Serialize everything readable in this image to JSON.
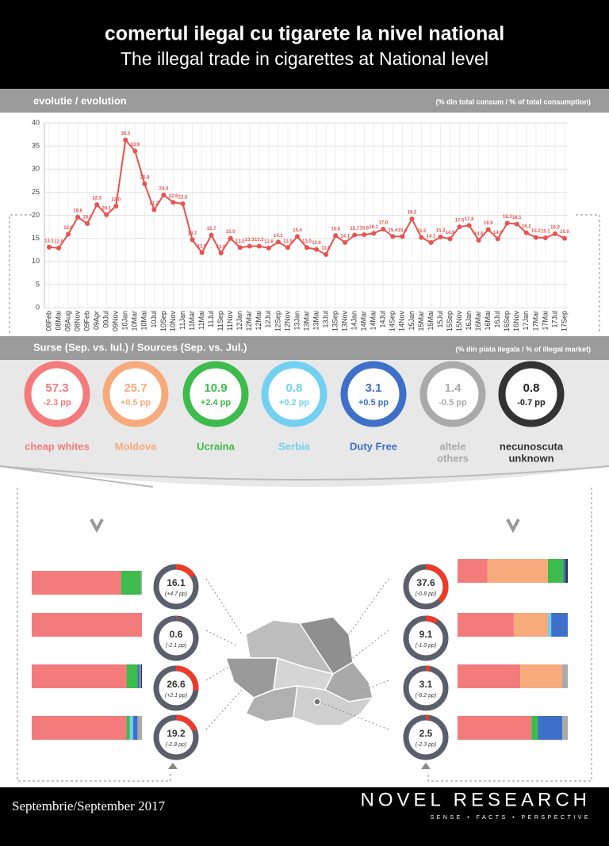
{
  "header": {
    "title": "comertul ilegal cu tigarete la nivel national",
    "subtitle": "The illegal trade in cigarettes at National level"
  },
  "evolution_bar": {
    "title": "evolutie / evolution",
    "note": "(% din total consum / % of total consumption)"
  },
  "sources_bar": {
    "title": "Surse (Sep. vs. Iul.) / Sources (Sep. vs. Jul.)",
    "note": "(% din piata ilegala / % of illegal market)"
  },
  "sources": [
    {
      "name": [
        "cheap whites"
      ],
      "value": 57.3,
      "change": "-2.3 pp",
      "color": "#f47b7b"
    },
    {
      "name": [
        "Moldova"
      ],
      "value": 25.7,
      "change": "+0.5 pp",
      "color": "#f7aa7c"
    },
    {
      "name": [
        "Ucraina"
      ],
      "value": 10.9,
      "change": "+2.4 pp",
      "color": "#3dbb4c"
    },
    {
      "name": [
        "Serbia"
      ],
      "value": 0.8,
      "change": "+0.2 pp",
      "color": "#72d0f0"
    },
    {
      "name": [
        "Duty Free"
      ],
      "value": 3.1,
      "change": "+0.5 pp",
      "color": "#3e70c9"
    },
    {
      "name": [
        "altele",
        "others"
      ],
      "value": 1.4,
      "change": "-0.5 pp",
      "color": "#aaaaaa"
    },
    {
      "name": [
        "necunoscuta",
        "unknown"
      ],
      "value": 0.8,
      "change": "-0.7 pp",
      "color": "#333333"
    }
  ],
  "footer": {
    "date": "Septembrie/September 2017",
    "brand": "NOVEL RESEARCH",
    "tagline": "SENSE • FACTS • PERSPECTIVE"
  },
  "chart_data": [
    {
      "type": "line",
      "color": "#e8524f",
      "grid": true,
      "ylim": [
        0,
        40
      ],
      "yticks": [
        0,
        5,
        10,
        15,
        20,
        25,
        30,
        35,
        40
      ],
      "categories": [
        "08Feb",
        "08Mai",
        "08Aug",
        "08Nov",
        "09Feb",
        "09Apr",
        "09Jul",
        "09Nov",
        "10Jan",
        "10Mar",
        "10Mai",
        "10Jul",
        "10Sep",
        "10Nov",
        "11Jan",
        "11Mar",
        "11Mai",
        "11Jul",
        "11Sep",
        "11Nov",
        "12Jan",
        "12Mar",
        "12Mai",
        "12Jul",
        "12Sep",
        "12Nov",
        "13Jan",
        "13Mar",
        "13Mai",
        "13Jul",
        "13Sep",
        "13Nov",
        "14Jan",
        "14Mar",
        "14Mai",
        "14Jul",
        "14Sep",
        "14Nov",
        "15Jan",
        "15Mar",
        "15Mai",
        "15Jul",
        "15Sep",
        "15Nov",
        "16Jan",
        "16Mar",
        "16Mai",
        "16Jul",
        "16Sep",
        "16Nov",
        "17Jan",
        "17Mar",
        "17Mai",
        "17Jul",
        "17Sep"
      ],
      "values": [
        13.1,
        12.9,
        15.9,
        19.6,
        18.2,
        22.3,
        20.1,
        22.0,
        36.3,
        33.9,
        26.8,
        21.2,
        24.4,
        22.8,
        22.5,
        14.7,
        11.9,
        15.7,
        11.8,
        15.0,
        13.0,
        13.3,
        13.3,
        12.9,
        14.2,
        13.0,
        15.4,
        13.0,
        12.6,
        11.5,
        15.6,
        14.1,
        15.7,
        15.8,
        16.1,
        17.0,
        15.4,
        15.4,
        19.2,
        15.2,
        14.1,
        15.3,
        14.9,
        17.5,
        17.8,
        14.6,
        16.9,
        14.9,
        18.3,
        18.1,
        16.2,
        15.2,
        15.1,
        16.0,
        15.0
      ],
      "value_labels": [
        "13.1",
        "12.9",
        "15.9",
        "19.6",
        "18.2",
        "22.3",
        "20.1",
        "22.0",
        "36.3",
        "33.9",
        "26.8",
        "21.2",
        "24.4",
        "22.8",
        "22.5",
        "14.7",
        "11.9",
        "15.7",
        "11.8",
        "15.0",
        "13.0",
        "13.3",
        "13.3",
        "12.9",
        "14.2",
        "13.0",
        "15.4",
        "13.0",
        "12.6",
        "11.5",
        "15.6",
        "14.1",
        "15.7",
        "15.8",
        "16.1",
        "17.0",
        "15.4",
        "15.4",
        "19.2",
        "15.2",
        "14.1",
        "15.3",
        "14.9",
        "17.5",
        "17.8",
        "14.6",
        "16.9",
        "14.9",
        "18.3",
        "18.1",
        "16.2",
        "15.2",
        "15.1",
        "16.0",
        "15.0"
      ]
    },
    {
      "type": "donut",
      "color": "#ee3a2a",
      "track": "#5b5f6c",
      "ylim": [
        0,
        100
      ],
      "values": [
        16.1,
        0.6,
        26.6,
        19.2,
        37.6,
        9.1,
        3.1,
        2.5
      ],
      "change_labels": [
        "(+4.7 pp)",
        "(-2.1 pp)",
        "(+2.1 pp)",
        "(-2.8 pp)",
        "(-0.8 pp)",
        "(-1.0 pp)",
        "(-6.2 pp)",
        "(-2.3 pp)"
      ]
    },
    {
      "type": "stacked-bar",
      "ylim": [
        0,
        100
      ],
      "series": [
        {
          "color": "#f47b7b",
          "values": [
            81,
            100,
            86,
            86,
            27,
            51,
            57,
            67
          ]
        },
        {
          "color": "#f7aa7c",
          "values": [
            0,
            0,
            0,
            0,
            55,
            31,
            38,
            0
          ]
        },
        {
          "color": "#3dbb4c",
          "values": [
            18,
            0,
            10,
            3,
            14,
            0,
            0,
            6
          ]
        },
        {
          "color": "#72d0f0",
          "values": [
            0,
            0,
            0,
            3,
            0,
            3,
            0,
            0
          ]
        },
        {
          "color": "#3e70c9",
          "values": [
            0,
            0,
            2,
            4,
            2,
            15,
            0,
            22
          ]
        },
        {
          "color": "#aaaaaa",
          "values": [
            1,
            0,
            1,
            4,
            0,
            0,
            5,
            5
          ]
        },
        {
          "color": "#333333",
          "values": [
            0,
            0,
            1,
            0,
            2,
            0,
            0,
            0
          ]
        }
      ]
    }
  ]
}
